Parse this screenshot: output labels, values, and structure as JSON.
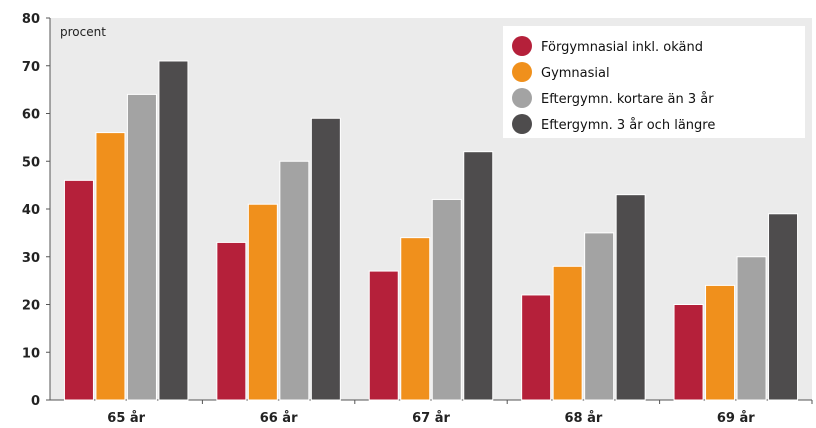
{
  "chart_data": {
    "type": "bar",
    "unit_label": "procent",
    "categories": [
      "65 år",
      "66 år",
      "67 år",
      "68 år",
      "69 år"
    ],
    "series": [
      {
        "name": "Förgymnasial inkl. okänd",
        "color": "#b5203a",
        "values": [
          46,
          33,
          27,
          22,
          20
        ]
      },
      {
        "name": "Gymnasial",
        "color": "#f0901c",
        "values": [
          56,
          41,
          34,
          28,
          24
        ]
      },
      {
        "name": "Eftergymn. kortare än 3 år",
        "color": "#a3a3a3",
        "values": [
          64,
          50,
          42,
          35,
          30
        ]
      },
      {
        "name": "Eftergymn. 3 år och längre",
        "color": "#4e4c4d",
        "values": [
          71,
          59,
          52,
          43,
          39
        ]
      }
    ],
    "ylim": [
      0,
      80
    ],
    "yticks": [
      0,
      10,
      20,
      30,
      40,
      50,
      60,
      70,
      80
    ],
    "grid": false,
    "legend_position": "top-right",
    "plot_background": "#ebebeb"
  }
}
